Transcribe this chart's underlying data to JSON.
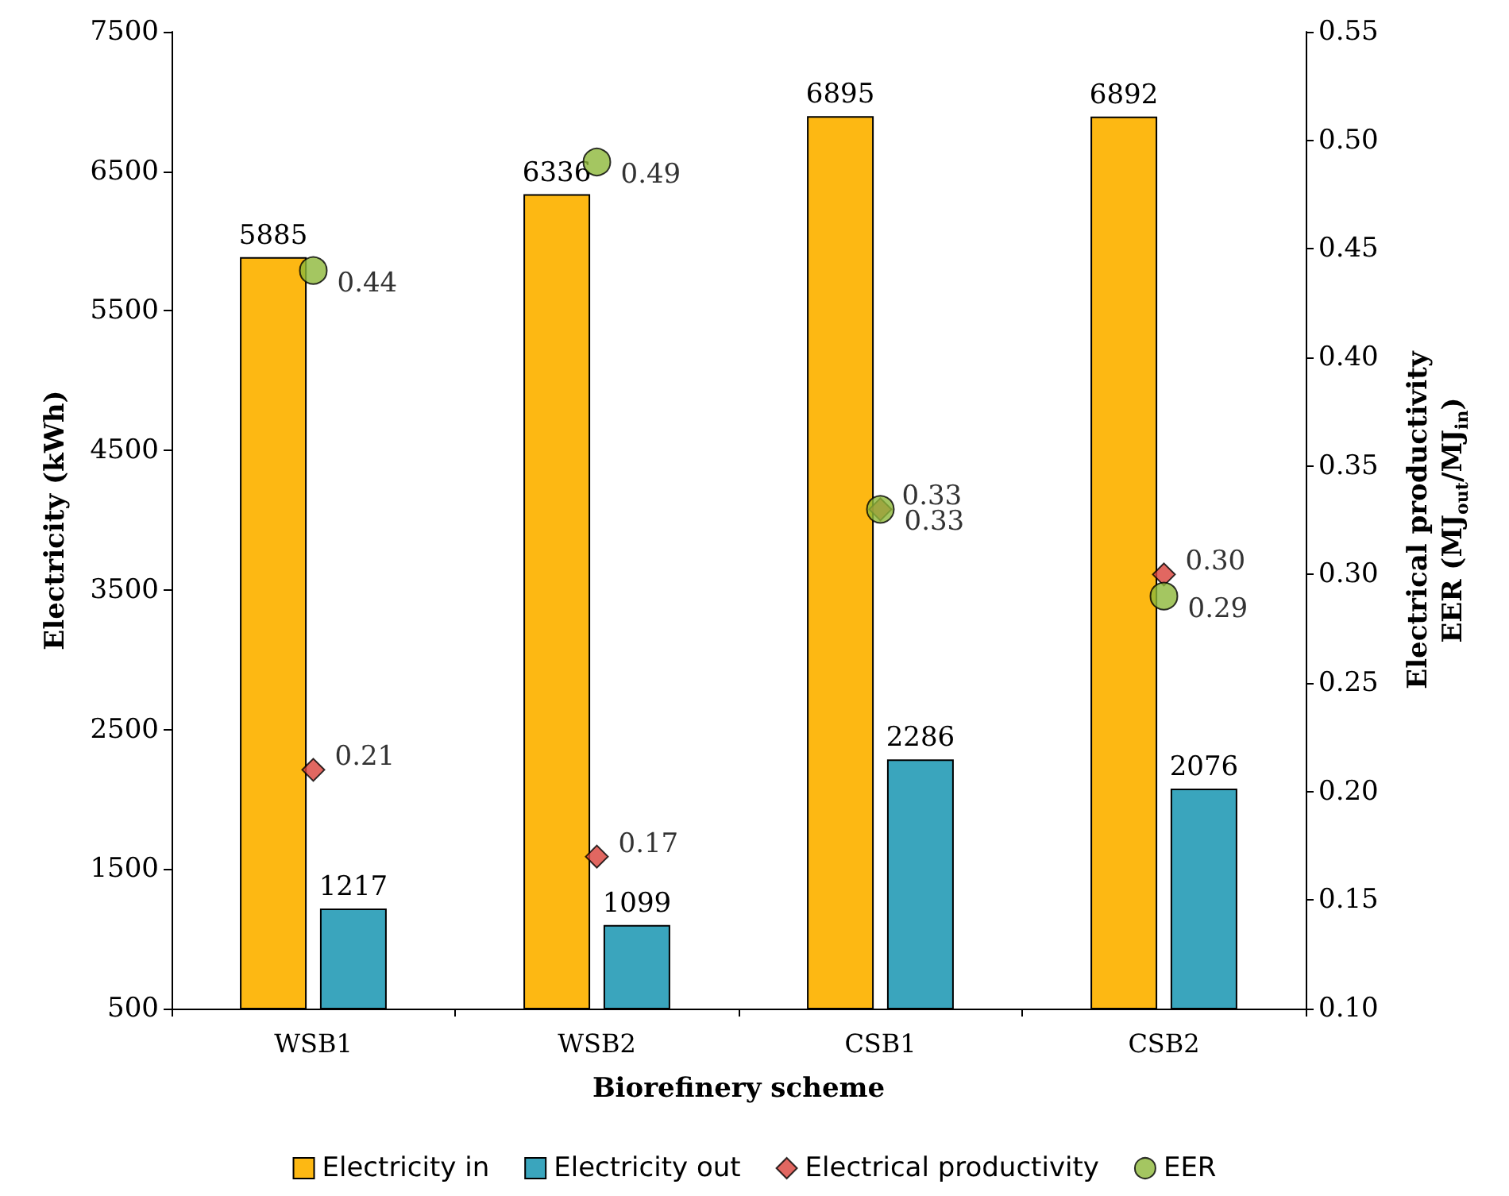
{
  "chart_data": {
    "type": "bar",
    "xlabel": "Biorefinery scheme",
    "ylabel": "Electricity (kWh)",
    "y2label": "Electrical productivity\nEER (MJ$_{out}$/MJ$_{in}$)",
    "categories": [
      "WSB1",
      "WSB2",
      "CSB1",
      "CSB2"
    ],
    "series": [
      {
        "name": "Electricity in",
        "color": "#fdb813",
        "values": [
          5885,
          6336,
          6895,
          6892
        ]
      },
      {
        "name": "Electricity out",
        "color": "#3aa5bd",
        "values": [
          1217,
          1099,
          2286,
          2076
        ]
      },
      {
        "name": "Electrical productivity",
        "type": "scatter",
        "axis": "y2",
        "marker": "diamond",
        "color": "#d9413a",
        "x": [
          "WSB1",
          "WSB2",
          "CSB1",
          "CSB2"
        ],
        "values": [
          0.21,
          0.17,
          0.33,
          0.3
        ],
        "value_labels": [
          "0.21",
          "0.17",
          "0.33",
          "0.30"
        ]
      },
      {
        "name": "EER",
        "type": "scatter",
        "axis": "y2",
        "marker": "circle",
        "color": "#8db83a",
        "x": [
          "WSB1",
          "WSB2",
          "CSB1",
          "CSB2"
        ],
        "values": [
          0.44,
          0.49,
          0.33,
          0.29
        ],
        "value_labels": [
          "0.44",
          "0.49",
          "0.33",
          "0.29"
        ]
      }
    ],
    "ylim": [
      500,
      7500
    ],
    "yticks": [
      500,
      1500,
      2500,
      3500,
      4500,
      5500,
      6500,
      7500
    ],
    "y2lim": [
      0.1,
      0.55
    ],
    "y2ticks": [
      {
        "value": 0.1,
        "label": "0.10"
      },
      0.15,
      {
        "value": 0.2,
        "label": "0.20"
      },
      0.25,
      {
        "value": 0.3,
        "label": "0.30"
      },
      0.35,
      {
        "value": 0.4,
        "label": "0.40"
      },
      0.45,
      {
        "value": 0.5,
        "label": "0.50"
      },
      0.55
    ],
    "data_labels": true,
    "grid": false,
    "legend": "bottom"
  }
}
